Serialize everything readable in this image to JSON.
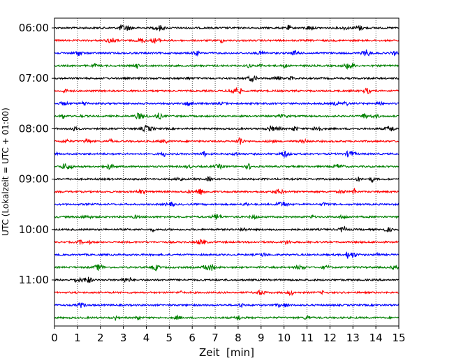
{
  "chart_data": {
    "type": "line",
    "title": "",
    "xlabel": "Zeit  [min]",
    "ylabel": "UTC (Lokalzeit = UTC + 01:00)",
    "xlim": [
      0,
      15
    ],
    "x_ticks": [
      0,
      1,
      2,
      3,
      4,
      5,
      6,
      7,
      8,
      9,
      10,
      11,
      12,
      13,
      14,
      15
    ],
    "x_tick_labels": [
      "0",
      "1",
      "2",
      "3",
      "4",
      "5",
      "6",
      "7",
      "8",
      "9",
      "10",
      "11",
      "12",
      "13",
      "14",
      "15"
    ],
    "y_tick_labels": [
      "06:00",
      "07:00",
      "08:00",
      "09:00",
      "10:00",
      "11:00"
    ],
    "grid": "vertical dotted lines at each minute",
    "row_interval_minutes": 15,
    "trace_colors": [
      "#000000",
      "#ff0000",
      "#0000ff",
      "#008000"
    ],
    "rows": [
      {
        "start": "06:00",
        "color": "#000000"
      },
      {
        "start": "06:15",
        "color": "#ff0000"
      },
      {
        "start": "06:30",
        "color": "#0000ff"
      },
      {
        "start": "06:45",
        "color": "#008000"
      },
      {
        "start": "07:00",
        "color": "#000000"
      },
      {
        "start": "07:15",
        "color": "#ff0000"
      },
      {
        "start": "07:30",
        "color": "#0000ff"
      },
      {
        "start": "07:45",
        "color": "#008000"
      },
      {
        "start": "08:00",
        "color": "#000000"
      },
      {
        "start": "08:15",
        "color": "#ff0000"
      },
      {
        "start": "08:30",
        "color": "#0000ff"
      },
      {
        "start": "08:45",
        "color": "#008000"
      },
      {
        "start": "09:00",
        "color": "#000000"
      },
      {
        "start": "09:15",
        "color": "#ff0000"
      },
      {
        "start": "09:30",
        "color": "#0000ff"
      },
      {
        "start": "09:45",
        "color": "#008000"
      },
      {
        "start": "10:00",
        "color": "#000000"
      },
      {
        "start": "10:15",
        "color": "#ff0000"
      },
      {
        "start": "10:30",
        "color": "#0000ff"
      },
      {
        "start": "10:45",
        "color": "#008000"
      },
      {
        "start": "11:00",
        "color": "#000000"
      },
      {
        "start": "11:15",
        "color": "#ff0000"
      },
      {
        "start": "11:30",
        "color": "#0000ff"
      },
      {
        "start": "11:45",
        "color": "#008000"
      }
    ]
  }
}
